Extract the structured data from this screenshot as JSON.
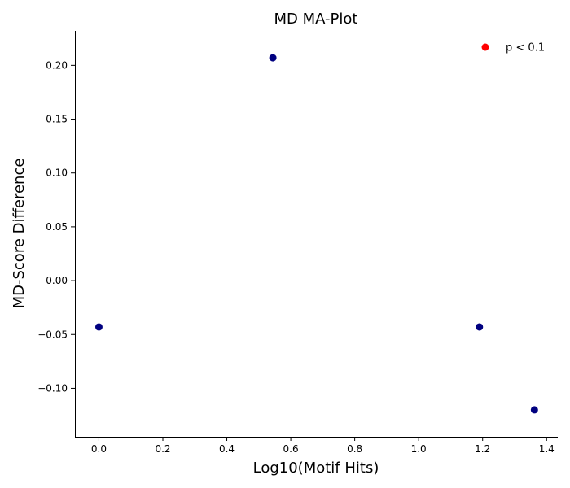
{
  "chart_data": {
    "type": "scatter",
    "title": "MD MA-Plot",
    "xlabel": "Log10(Motif Hits)",
    "ylabel": "MD-Score Difference",
    "xlim": [
      -0.075,
      1.435
    ],
    "ylim": [
      -0.145,
      0.232
    ],
    "xticks": [
      0.0,
      0.2,
      0.4,
      0.6,
      0.8,
      1.0,
      1.2,
      1.4
    ],
    "xtick_labels": [
      "0.0",
      "0.2",
      "0.4",
      "0.6",
      "0.8",
      "1.0",
      "1.2",
      "1.4"
    ],
    "yticks": [
      -0.1,
      -0.05,
      0.0,
      0.05,
      0.1,
      0.15,
      0.2
    ],
    "ytick_labels": [
      "−0.10",
      "−0.05",
      "0.00",
      "0.05",
      "0.10",
      "0.15",
      "0.20"
    ],
    "grid": false,
    "legend_position": "top-right",
    "legend": [
      {
        "label": "p < 0.1",
        "color": "#ff0000"
      }
    ],
    "series": [
      {
        "color": "#000080",
        "points": [
          {
            "x": 0.0,
            "y": -0.043
          },
          {
            "x": 0.544,
            "y": 0.207
          },
          {
            "x": 1.19,
            "y": -0.043
          },
          {
            "x": 1.362,
            "y": -0.12
          }
        ]
      }
    ]
  }
}
